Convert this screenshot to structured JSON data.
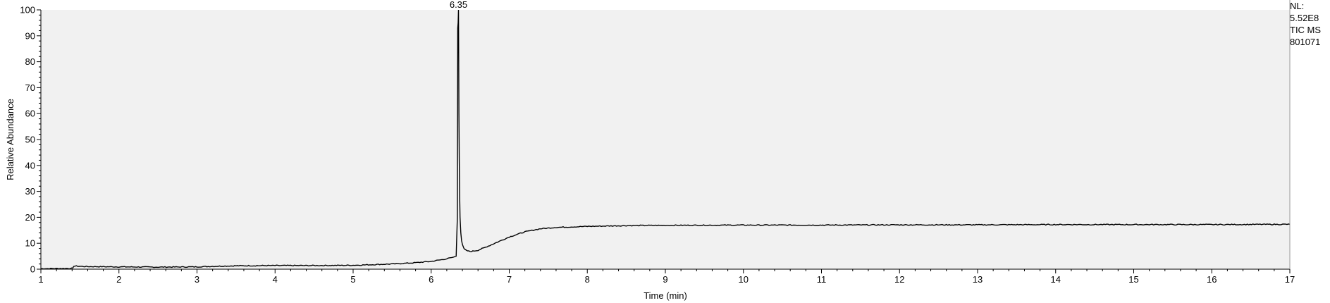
{
  "info": {
    "nl_label": "NL:",
    "nl_value": "5.52E8",
    "trace_label": "TIC  MS",
    "file_id": "801071"
  },
  "colors": {
    "plot_background": "#f1f1f1",
    "trace": "#000000"
  },
  "chart_data": {
    "type": "line",
    "xlabel": "Time (min)",
    "ylabel": "Relative Abundance",
    "xlim": [
      1,
      17
    ],
    "ylim": [
      0,
      100
    ],
    "xticks": [
      1,
      2,
      3,
      4,
      5,
      6,
      7,
      8,
      9,
      10,
      11,
      12,
      13,
      14,
      15,
      16,
      17
    ],
    "yticks": [
      0,
      10,
      20,
      30,
      40,
      50,
      60,
      70,
      80,
      90,
      100
    ],
    "x_minor_step": 0.2,
    "y_minor_step": 2,
    "grid": false,
    "peak_annotations": [
      {
        "x": 6.35,
        "y": 100,
        "label": "6.35"
      }
    ],
    "series": [
      {
        "x": [
          1.0,
          1.41,
          1.42,
          1.6,
          2.0,
          2.5,
          3.0,
          3.2,
          3.5,
          4.0,
          4.5,
          5.0,
          5.5,
          5.8,
          6.0,
          6.1,
          6.2,
          6.28,
          6.32,
          6.335,
          6.34,
          6.345,
          6.35,
          6.355,
          6.36,
          6.365,
          6.37,
          6.38,
          6.39,
          6.4,
          6.42,
          6.45,
          6.5,
          6.6,
          6.7,
          6.8,
          7.0,
          7.2,
          7.4,
          7.6,
          7.8,
          8.0,
          8.5,
          9.0,
          10.0,
          11.0,
          12.0,
          13.0,
          14.0,
          15.0,
          16.0,
          17.0
        ],
        "y": [
          0.2,
          0.3,
          1.2,
          1.0,
          0.9,
          0.8,
          0.9,
          1.1,
          1.3,
          1.4,
          1.4,
          1.5,
          2.0,
          2.5,
          3.0,
          3.5,
          4.0,
          4.6,
          5.0,
          20.0,
          93.0,
          95.0,
          100.0,
          60.0,
          42.0,
          28.0,
          20.0,
          14.0,
          11.0,
          9.5,
          8.0,
          7.2,
          6.8,
          7.3,
          8.5,
          9.8,
          12.4,
          14.4,
          15.6,
          16.1,
          16.3,
          16.5,
          16.8,
          16.9,
          17.0,
          17.0,
          17.1,
          17.1,
          17.2,
          17.2,
          17.2,
          17.3
        ]
      }
    ]
  }
}
